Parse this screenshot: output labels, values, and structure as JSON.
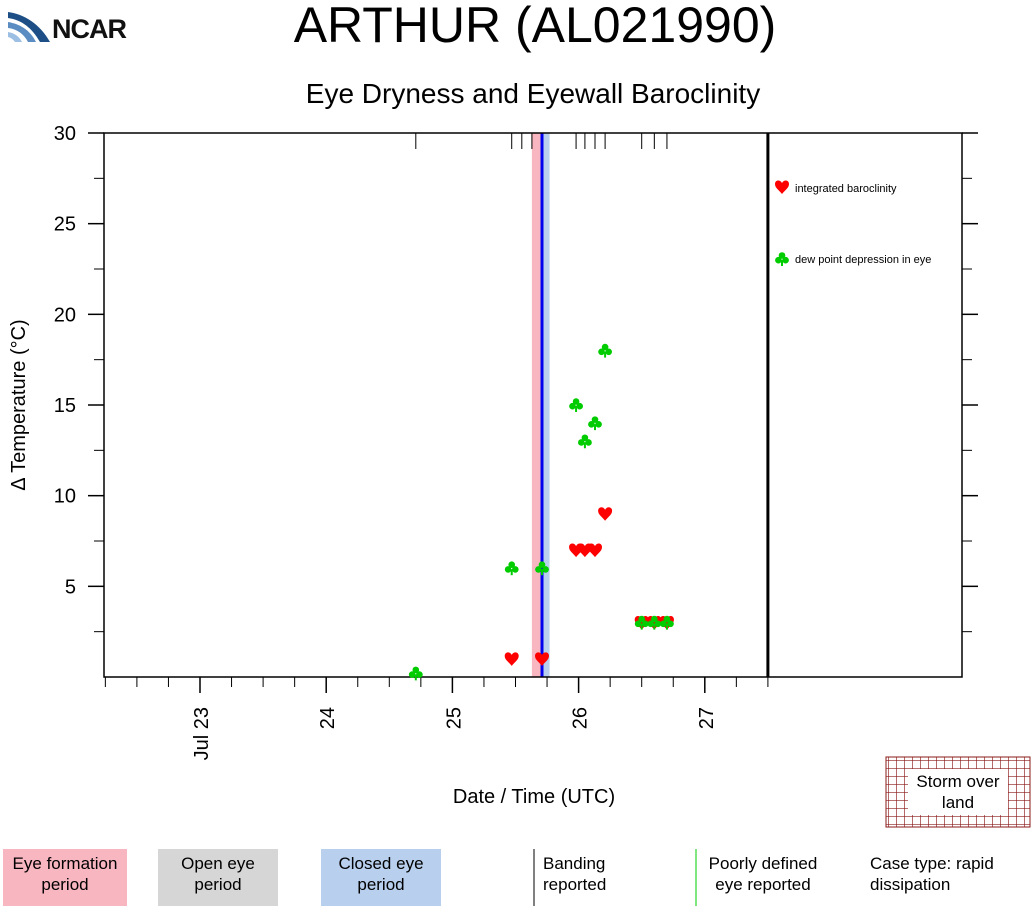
{
  "header": {
    "logo_text": "NCAR",
    "title": "ARTHUR (AL021990)",
    "subtitle": "Eye Dryness and Eyewall Baroclinity"
  },
  "chart_data": {
    "type": "scatter",
    "xlabel": "Date / Time (UTC)",
    "ylabel": "Δ Temperature (°C)",
    "x_unit": "days (July 1990)",
    "xlim": [
      22.25,
      27.5
    ],
    "ylim": [
      0,
      30
    ],
    "yticks": [
      5,
      10,
      15,
      20,
      25,
      30
    ],
    "yticks_minor": [
      2.5,
      7.5,
      12.5,
      17.5,
      22.5,
      27.5
    ],
    "xticks": [
      {
        "x": 23,
        "label": "Jul 23"
      },
      {
        "x": 24,
        "label": "24"
      },
      {
        "x": 25,
        "label": "25"
      },
      {
        "x": 26,
        "label": "26"
      },
      {
        "x": 27,
        "label": "27"
      }
    ],
    "series": [
      {
        "name": "integrated baroclinity",
        "marker": "heart",
        "color": "#ff0000",
        "points": [
          [
            25.47,
            1
          ],
          [
            25.71,
            1
          ],
          [
            25.98,
            7
          ],
          [
            26.05,
            7
          ],
          [
            26.13,
            7
          ],
          [
            26.21,
            9
          ],
          [
            26.5,
            3
          ],
          [
            26.6,
            3
          ],
          [
            26.7,
            3
          ]
        ]
      },
      {
        "name": "dew point depression in eye",
        "marker": "club",
        "color": "#00cc00",
        "points": [
          [
            24.71,
            0.2
          ],
          [
            25.47,
            6
          ],
          [
            25.71,
            6
          ],
          [
            25.98,
            15
          ],
          [
            26.05,
            13
          ],
          [
            26.13,
            14
          ],
          [
            26.21,
            18
          ],
          [
            26.5,
            3
          ],
          [
            26.6,
            3
          ],
          [
            26.7,
            3
          ]
        ]
      }
    ],
    "eye_formation_period": [
      25.63,
      25.71
    ],
    "closed_eye_period": [
      25.71,
      25.77
    ],
    "closed_eye_line_x": 25.71,
    "storm_end_x": 27.5,
    "banding_reported_x": [
      24.71,
      25.47,
      25.55,
      25.63,
      25.98,
      26.05,
      26.13,
      26.21,
      26.5,
      26.6,
      26.7
    ],
    "colors": {
      "eye_formation": "#f7b6c0",
      "open_eye": "#d6d6d6",
      "closed_eye": "#b8d0ee",
      "closed_eye_line": "#0000ee",
      "land_hatch": "#8b1a1a"
    }
  },
  "legend_bottom": {
    "eye_formation": "Eye formation period",
    "open_eye": "Open eye period",
    "closed_eye": "Closed eye period",
    "banding": "Banding reported",
    "poorly_defined": "Poorly defined eye reported",
    "case_type": "Case type: rapid dissipation",
    "storm_over_land": "Storm over land"
  }
}
